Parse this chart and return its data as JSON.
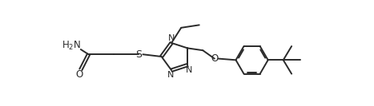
{
  "bg_color": "#ffffff",
  "line_color": "#2a2a2a",
  "text_color": "#2a2a2a",
  "figsize": [
    4.67,
    1.33
  ],
  "dpi": 100,
  "lw": 1.4,
  "xlim": [
    0,
    10.5
  ],
  "ylim": [
    -1.0,
    2.8
  ]
}
